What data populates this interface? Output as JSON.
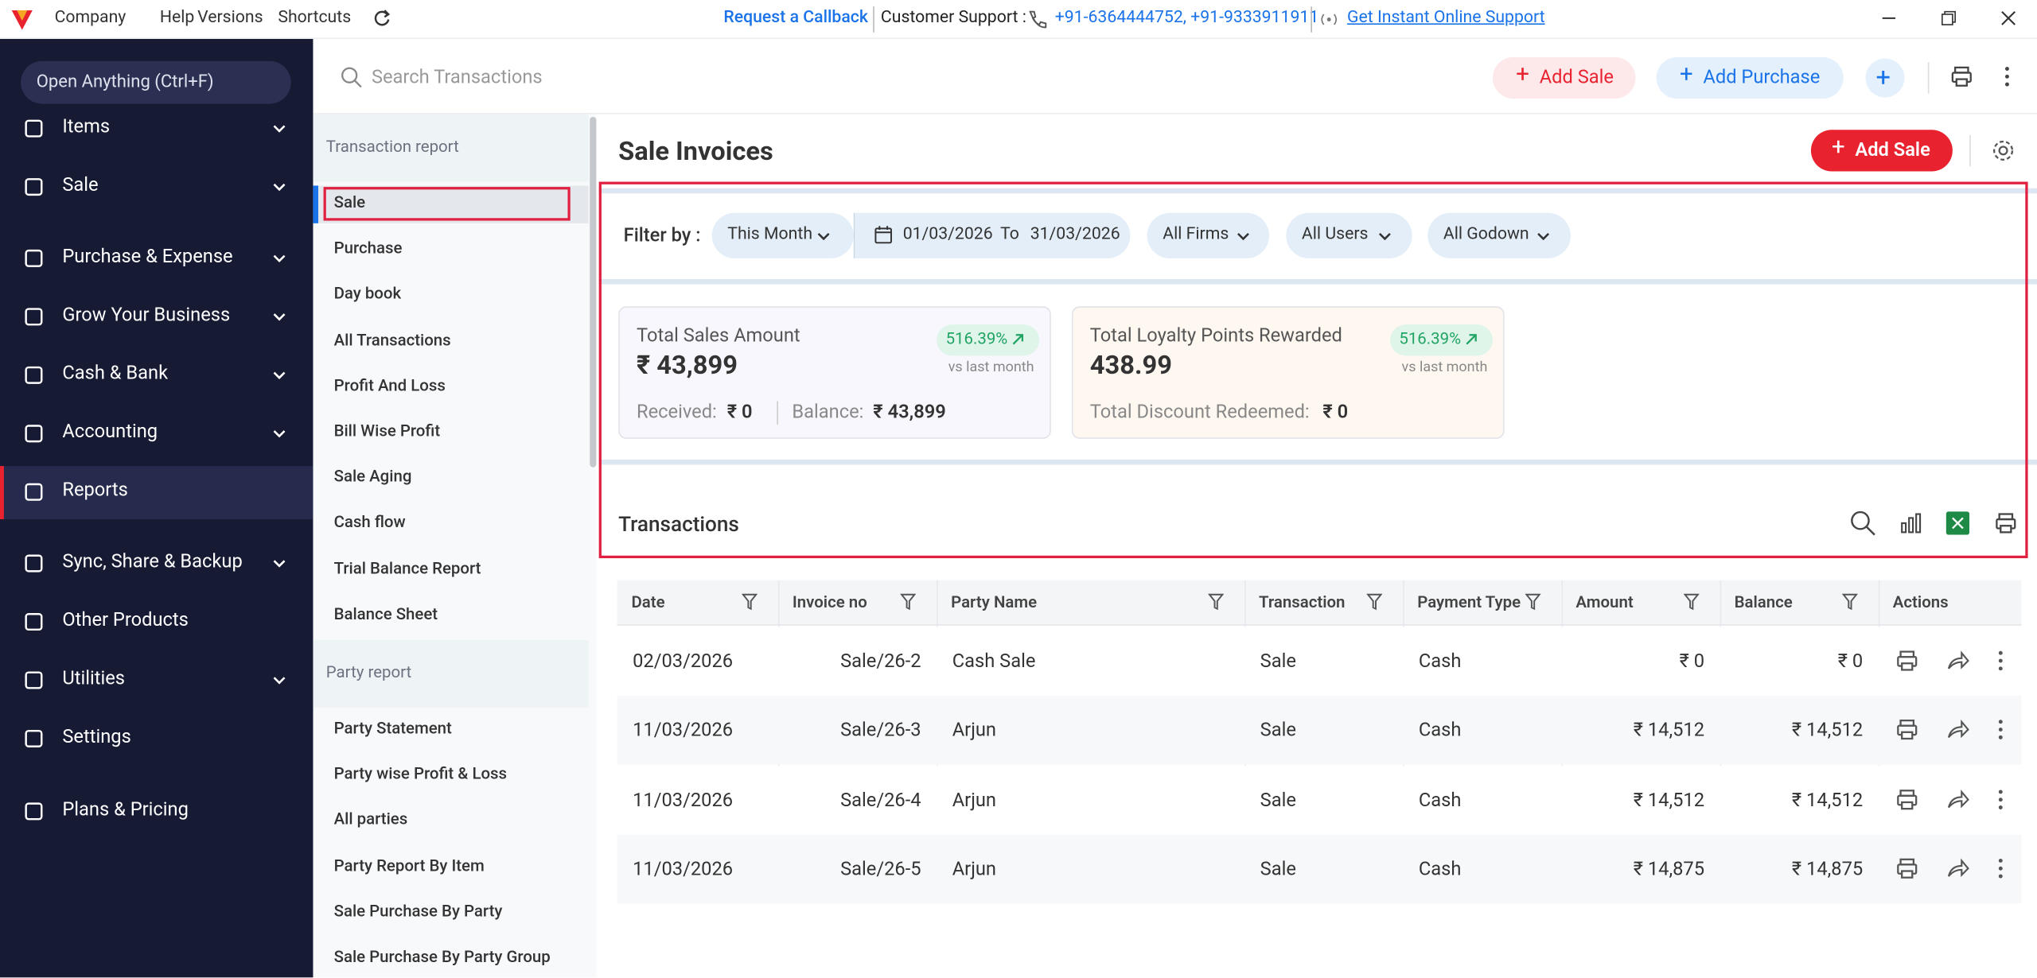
{
  "menubar": {
    "items": [
      "Company",
      "Help",
      "Versions",
      "Shortcuts"
    ],
    "callback": "Request a Callback",
    "support_label": "Customer Support :",
    "phones": "+91-6364444752, +91-9333911911",
    "online_support": "Get Instant Online Support"
  },
  "sidebar": {
    "search": "Open Anything (Ctrl+F)",
    "items": [
      {
        "label": "Items",
        "expandable": true
      },
      {
        "label": "Sale",
        "expandable": true
      },
      {
        "label": "Purchase & Expense",
        "expandable": true
      },
      {
        "label": "Grow Your Business",
        "expandable": true
      },
      {
        "label": "Cash & Bank",
        "expandable": true
      },
      {
        "label": "Accounting",
        "expandable": true
      },
      {
        "label": "Reports",
        "expandable": false,
        "active": true
      },
      {
        "label": "Sync, Share & Backup",
        "expandable": true
      },
      {
        "label": "Other Products",
        "expandable": false
      },
      {
        "label": "Utilities",
        "expandable": true
      },
      {
        "label": "Settings",
        "expandable": false
      },
      {
        "label": "Plans & Pricing",
        "expandable": false
      }
    ]
  },
  "toolbar": {
    "search_placeholder": "Search Transactions",
    "add_sale": "Add Sale",
    "add_purchase": "Add Purchase"
  },
  "report_menu": {
    "sections": [
      {
        "title": "Transaction report",
        "items": [
          "Sale",
          "Purchase",
          "Day book",
          "All Transactions",
          "Profit And Loss",
          "Bill Wise Profit",
          "Sale Aging",
          "Cash flow",
          "Trial Balance Report",
          "Balance Sheet"
        ]
      },
      {
        "title": "Party report",
        "items": [
          "Party Statement",
          "Party wise Profit & Loss",
          "All parties",
          "Party Report By Item",
          "Sale Purchase By Party",
          "Sale Purchase By Party Group"
        ]
      }
    ],
    "selected": "Sale"
  },
  "main": {
    "title": "Sale Invoices",
    "add_sale": "Add Sale",
    "filter": {
      "label": "Filter by :",
      "period": "This Month",
      "from": "01/03/2026",
      "to_label": "To",
      "to": "31/03/2026",
      "firms": "All Firms",
      "users": "All Users",
      "godown": "All Godown"
    },
    "cards": [
      {
        "title": "Total Sales Amount",
        "value": "₹ 43,899",
        "change": "516.39%",
        "compare": "vs last month",
        "footer": [
          {
            "label": "Received:",
            "value": "₹ 0"
          },
          {
            "label": "Balance:",
            "value": "₹ 43,899"
          }
        ]
      },
      {
        "title": "Total Loyalty Points Rewarded",
        "value": "438.99",
        "change": "516.39%",
        "compare": "vs last month",
        "footer": [
          {
            "label": "Total Discount Redeemed:",
            "value": "₹ 0"
          }
        ]
      }
    ],
    "transactions_title": "Transactions",
    "table": {
      "headers": [
        "Date",
        "Invoice no",
        "Party Name",
        "Transaction",
        "Payment Type",
        "Amount",
        "Balance",
        "Actions"
      ],
      "rows": [
        [
          "02/03/2026",
          "Sale/26-2",
          "Cash Sale",
          "Sale",
          "Cash",
          "₹ 0",
          "₹ 0"
        ],
        [
          "11/03/2026",
          "Sale/26-3",
          "Arjun",
          "Sale",
          "Cash",
          "₹ 14,512",
          "₹ 14,512"
        ],
        [
          "11/03/2026",
          "Sale/26-4",
          "Arjun",
          "Sale",
          "Cash",
          "₹ 14,512",
          "₹ 14,512"
        ],
        [
          "11/03/2026",
          "Sale/26-5",
          "Arjun",
          "Sale",
          "Cash",
          "₹ 14,875",
          "₹ 14,875"
        ]
      ]
    }
  }
}
